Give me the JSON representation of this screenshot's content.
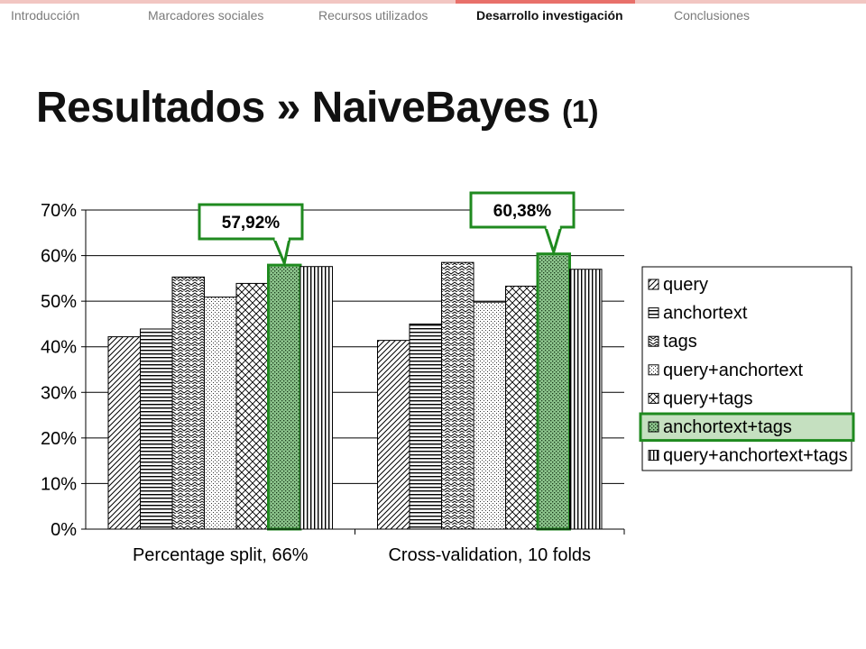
{
  "nav": {
    "items": [
      {
        "label": "Introducción",
        "active": false
      },
      {
        "label": "Marcadores sociales",
        "active": false
      },
      {
        "label": "Recursos utilizados",
        "active": false
      },
      {
        "label": "Desarrollo investigación",
        "active": true
      },
      {
        "label": "Conclusiones",
        "active": false
      }
    ]
  },
  "title": {
    "main": "Resultados » NaiveBayes",
    "suffix": "(1)"
  },
  "colors": {
    "highlight_green": "#1f8a1f",
    "highlight_fill": "#7ab87a",
    "legend_highlight_bg": "#c5e0c0",
    "nav_accent": "#e8706a"
  },
  "chart_data": {
    "type": "bar",
    "categories": [
      "Percentage split, 66%",
      "Cross-validation, 10 folds"
    ],
    "series": [
      {
        "name": "query",
        "values": [
          42.2,
          41.4
        ],
        "pattern": "diag-up"
      },
      {
        "name": "anchortext",
        "values": [
          43.9,
          45.0
        ],
        "pattern": "horizontal"
      },
      {
        "name": "tags",
        "values": [
          55.3,
          58.5
        ],
        "pattern": "zigzag"
      },
      {
        "name": "query+anchortext",
        "values": [
          50.9,
          49.8
        ],
        "pattern": "dots"
      },
      {
        "name": "query+tags",
        "values": [
          53.9,
          53.3
        ],
        "pattern": "checker"
      },
      {
        "name": "anchortext+tags",
        "values": [
          57.92,
          60.38
        ],
        "pattern": "green-dots",
        "highlight": true
      },
      {
        "name": "query+anchortext+tags",
        "values": [
          57.6,
          57.0
        ],
        "pattern": "vertical"
      }
    ],
    "ylim": [
      0,
      70
    ],
    "y_ticks": [
      "0%",
      "10%",
      "20%",
      "30%",
      "40%",
      "50%",
      "60%",
      "70%"
    ],
    "grid": true,
    "legend_position": "right",
    "callouts": [
      {
        "text": "57,92%",
        "category_index": 0,
        "series_index": 5
      },
      {
        "text": "60,38%",
        "category_index": 1,
        "series_index": 5
      }
    ]
  }
}
